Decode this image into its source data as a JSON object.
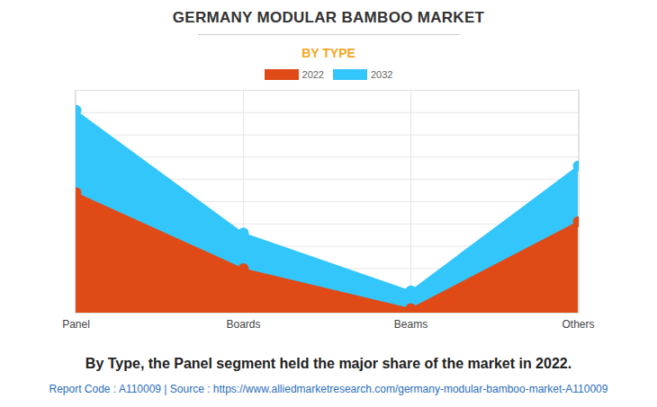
{
  "chart_data": {
    "type": "area",
    "title": "GERMANY MODULAR BAMBOO MARKET",
    "subtitle": "BY TYPE",
    "caption": "By Type, the Panel segment held the major share of the market in 2022.",
    "footer": "Report Code : A110009  |  Source : https://www.alliedmarketresearch.com/germany-modular-bamboo-market-A110009",
    "categories": [
      "Panel",
      "Boards",
      "Beams",
      "Others"
    ],
    "series": [
      {
        "name": "2022",
        "color": "#e04a17",
        "values": [
          5.4,
          2.0,
          0.2,
          4.1
        ]
      },
      {
        "name": "2032",
        "color": "#33c6fb",
        "values": [
          9.1,
          3.6,
          1.0,
          6.6
        ]
      }
    ],
    "ylim": [
      0,
      10
    ],
    "yticks": [
      0,
      1,
      2,
      3,
      4,
      5,
      6,
      7,
      8,
      9,
      10
    ],
    "grid": true,
    "tick_labels": "x",
    "legend": "top",
    "marker": "circle"
  }
}
